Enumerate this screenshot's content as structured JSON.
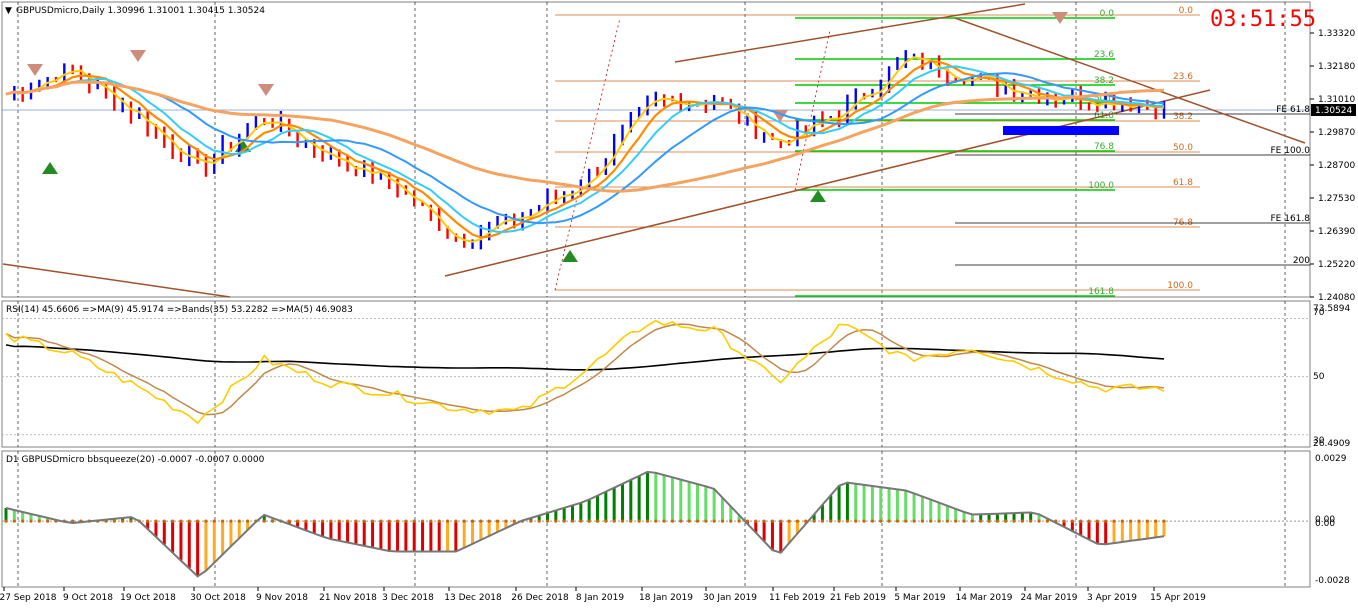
{
  "header": {
    "symbol_line": "GBPUSDmicro,Daily  1.30996 1.31001 1.30415 1.30524",
    "clock": "03:51:55"
  },
  "colors": {
    "bull_bar": "#0000ff",
    "bear_bar": "#ff0000",
    "ma_fast": "#ffcc00",
    "ma_orange": "#ff8c00",
    "ma_cyan": "#33ccff",
    "ma_blue": "#3399ff",
    "ma_slow": "#f4a460",
    "trend": "#a0522d",
    "fib_green": "#00cc00",
    "fib_brown": "#d2691e",
    "rsi_line": "#ffcc00",
    "rsi_ma": "#c0884c",
    "rsi_bands": "#000000",
    "sq_up_strong": "#008000",
    "sq_up_weak": "#66dd66",
    "sq_dn_strong": "#dd0000",
    "sq_dn_weak": "#ffaa22"
  },
  "price_panel": {
    "y_ticks": [
      "1.33320",
      "1.32180",
      "1.31010",
      "1.29870",
      "1.28700",
      "1.27530",
      "1.26390",
      "1.25220",
      "1.24080"
    ],
    "current_price": "1.30524",
    "fib_green_levels": [
      "0.0",
      "23.6",
      "38.2",
      "50.0",
      "61.8",
      "76.8",
      "100.0",
      "161.8"
    ],
    "fib_brown_levels": [
      "0.0",
      "23.6",
      "38.2",
      "50.0",
      "61.8",
      "76.8",
      "100.0"
    ],
    "fe_labels": [
      "FE 61.8",
      "FE 100.0",
      "FE 161.8",
      "200"
    ]
  },
  "rsi_panel": {
    "header": "RSI(14) 45.6606  =>MA(9) 45.9174  =>Bands(35) 53.2282  =>MA(5) 46.9083",
    "y_ticks": [
      "73.5894",
      "70",
      "50",
      "30",
      "26.4909"
    ]
  },
  "squeeze_panel": {
    "header": "D1 GBPUSDmicro bbsqueeze(20) -0.0007 -0.0007 0.0000",
    "y_ticks": [
      "0.0029",
      "0.00",
      "0.00",
      "-0.0028"
    ]
  },
  "x_axis": {
    "labels": [
      "27 Sep 2018",
      "9 Oct 2018",
      "19 Oct 2018",
      "30 Oct 2018",
      "9 Nov 2018",
      "21 Nov 2018",
      "3 Dec 2018",
      "13 Dec 2018",
      "26 Dec 2018",
      "8 Jan 2019",
      "18 Jan 2019",
      "30 Jan 2019",
      "11 Feb 2019",
      "21 Feb 2019",
      "5 Mar 2019",
      "14 Mar 2019",
      "24 Mar 2019",
      "3 Apr 2019",
      "15 Apr 2019"
    ]
  },
  "chart_data": {
    "type": "line",
    "title": "GBPUSDmicro,Daily",
    "x": [
      "27 Sep 2018",
      "9 Oct 2018",
      "19 Oct 2018",
      "30 Oct 2018",
      "9 Nov 2018",
      "21 Nov 2018",
      "3 Dec 2018",
      "13 Dec 2018",
      "26 Dec 2018",
      "8 Jan 2019",
      "18 Jan 2019",
      "30 Jan 2019",
      "11 Feb 2019",
      "21 Feb 2019",
      "5 Mar 2019",
      "14 Mar 2019",
      "24 Mar 2019",
      "3 Apr 2019",
      "15 Apr 2019"
    ],
    "ylim": [
      1.2375,
      1.3405
    ],
    "series": [
      {
        "name": "",
        "values": [
          1.309,
          1.318,
          1.302,
          1.282,
          1.301,
          1.287,
          1.277,
          1.257,
          1.265,
          1.278,
          1.306,
          1.307,
          1.291,
          1.303,
          1.322,
          1.315,
          1.309,
          1.307,
          1.305
        ]
      }
    ],
    "close": {
      "open": 1.30996,
      "high": 1.31001,
      "low": 1.30415,
      "close": 1.30524
    },
    "rsi": {
      "values": [
        64,
        58,
        47,
        35,
        56,
        48,
        44,
        39,
        38,
        52,
        69,
        66,
        48,
        68,
        56,
        60,
        53,
        46,
        46
      ],
      "ylim": [
        26.4909,
        73.5894
      ]
    },
    "bbsqueeze": {
      "values": [
        0.0006,
        -0.0001,
        0.0002,
        -0.0026,
        0.0003,
        -0.0008,
        -0.0014,
        -0.0014,
        0.0,
        0.0009,
        0.0023,
        0.0015,
        -0.0016,
        0.0018,
        0.0014,
        0.0003,
        0.0004,
        -0.0011,
        -0.0007
      ],
      "ylim": [
        -0.0028,
        0.0029
      ]
    }
  }
}
